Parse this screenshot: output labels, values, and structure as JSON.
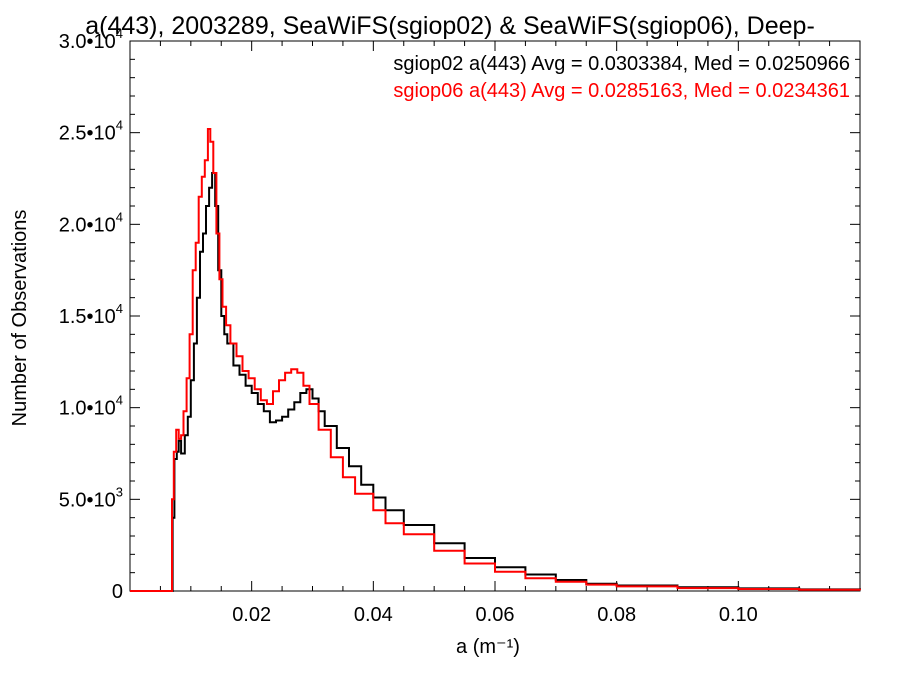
{
  "chart_data": {
    "type": "line",
    "title": "a(443), 2003289, SeaWiFS(sgiop02) & SeaWiFS(sgiop06), Deep-",
    "xlabel": "a (m⁻¹)",
    "ylabel": "Number of Observations",
    "xlim": [
      0.0,
      0.12
    ],
    "ylim": [
      0,
      30000
    ],
    "x_ticks": [
      {
        "value": 0.02,
        "label": "0.02"
      },
      {
        "value": 0.04,
        "label": "0.04"
      },
      {
        "value": 0.06,
        "label": "0.06"
      },
      {
        "value": 0.08,
        "label": "0.08"
      },
      {
        "value": 0.1,
        "label": "0.10"
      }
    ],
    "y_ticks": [
      {
        "value": 0,
        "mant": "0",
        "exp": ""
      },
      {
        "value": 5000,
        "mant": "5.0•10",
        "exp": "3"
      },
      {
        "value": 10000,
        "mant": "1.0•10",
        "exp": "4"
      },
      {
        "value": 15000,
        "mant": "1.5•10",
        "exp": "4"
      },
      {
        "value": 20000,
        "mant": "2.0•10",
        "exp": "4"
      },
      {
        "value": 25000,
        "mant": "2.5•10",
        "exp": "4"
      },
      {
        "value": 30000,
        "mant": "3.0•10",
        "exp": "4"
      }
    ],
    "grid": false,
    "legend_position": "top-right",
    "annotations": [
      {
        "text": "sgiop02 a(443) Avg = 0.0303384, Med = 0.0250966",
        "color": "#000000"
      },
      {
        "text": "sgiop06 a(443) Avg = 0.0285163, Med = 0.0234361",
        "color": "#ff0000"
      }
    ],
    "series": [
      {
        "color": "#000000",
        "x": [
          0.0,
          0.0066,
          0.007,
          0.0073,
          0.0077,
          0.008,
          0.0084,
          0.009,
          0.0095,
          0.01,
          0.0105,
          0.011,
          0.0115,
          0.012,
          0.0125,
          0.013,
          0.0135,
          0.014,
          0.0145,
          0.015,
          0.0155,
          0.016,
          0.017,
          0.018,
          0.019,
          0.02,
          0.021,
          0.022,
          0.023,
          0.024,
          0.025,
          0.026,
          0.027,
          0.028,
          0.029,
          0.03,
          0.031,
          0.032,
          0.034,
          0.036,
          0.038,
          0.04,
          0.042,
          0.045,
          0.05,
          0.055,
          0.06,
          0.065,
          0.07,
          0.075,
          0.08,
          0.09,
          0.1,
          0.11,
          0.12
        ],
        "y": [
          0,
          0,
          4000,
          7200,
          7600,
          8200,
          7500,
          8500,
          9500,
          11500,
          13500,
          16000,
          18500,
          19500,
          21000,
          22000,
          22800,
          21000,
          17500,
          15000,
          14000,
          13500,
          12300,
          11800,
          11200,
          10800,
          10200,
          9800,
          9200,
          9300,
          9500,
          9900,
          10300,
          10800,
          11000,
          10500,
          9800,
          9000,
          7800,
          6800,
          5800,
          5100,
          4400,
          3600,
          2600,
          1800,
          1300,
          900,
          600,
          400,
          300,
          200,
          140,
          90,
          60
        ]
      },
      {
        "color": "#ff0000",
        "x": [
          0.0,
          0.0065,
          0.0069,
          0.0072,
          0.0076,
          0.008,
          0.0084,
          0.0088,
          0.0093,
          0.0098,
          0.0103,
          0.0108,
          0.0113,
          0.0118,
          0.0123,
          0.0128,
          0.0132,
          0.0137,
          0.0142,
          0.0147,
          0.0152,
          0.0158,
          0.0165,
          0.0175,
          0.0185,
          0.0195,
          0.0205,
          0.0215,
          0.0225,
          0.0235,
          0.0245,
          0.0255,
          0.0265,
          0.0275,
          0.0285,
          0.0295,
          0.031,
          0.033,
          0.035,
          0.037,
          0.04,
          0.042,
          0.045,
          0.05,
          0.055,
          0.06,
          0.065,
          0.07,
          0.075,
          0.08,
          0.09,
          0.1,
          0.11,
          0.12
        ],
        "y": [
          0,
          0,
          5000,
          7600,
          8800,
          8300,
          8500,
          9800,
          11600,
          14000,
          17500,
          19000,
          21500,
          22600,
          23500,
          25200,
          24500,
          22800,
          19500,
          17000,
          15500,
          14500,
          13500,
          12800,
          12000,
          11600,
          11000,
          10400,
          10200,
          10900,
          11500,
          11900,
          12100,
          11900,
          11200,
          10200,
          8800,
          7300,
          6200,
          5300,
          4400,
          3700,
          3100,
          2200,
          1500,
          1050,
          700,
          500,
          350,
          250,
          160,
          110,
          70,
          40
        ]
      }
    ]
  }
}
